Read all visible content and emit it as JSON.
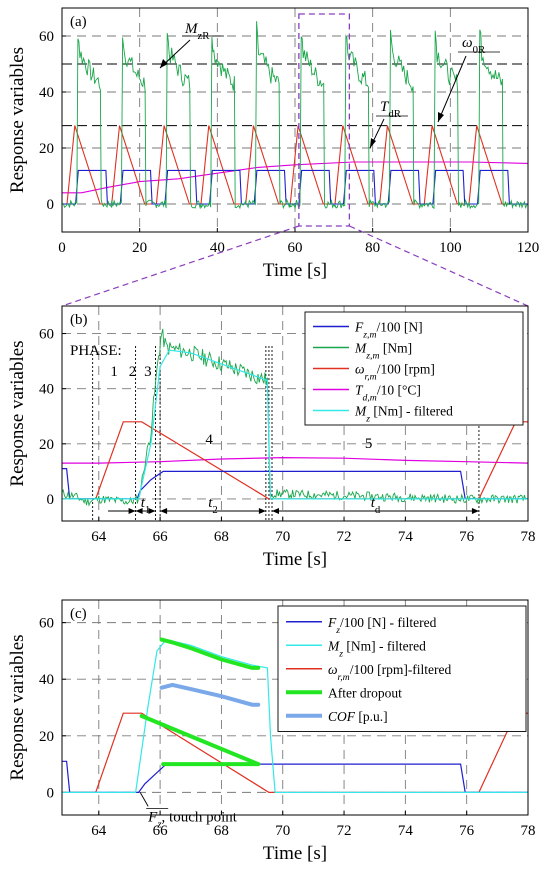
{
  "chart_data": [
    {
      "id": "a",
      "type": "line",
      "panel_label": "(a)",
      "xlabel": "Time [s]",
      "ylabel": "Response variables",
      "xlim": [
        0,
        120
      ],
      "ylim": [
        -10,
        70
      ],
      "xticks": [
        0,
        20,
        40,
        60,
        80,
        100,
        120
      ],
      "yticks": [
        0,
        20,
        40,
        60
      ],
      "grid": true,
      "hlines": [
        28,
        50
      ],
      "annotations": [
        {
          "text": "M",
          "sub": "zR"
        },
        {
          "text": "ω",
          "sub": "0R"
        },
        {
          "text": "T",
          "sub": "dR"
        }
      ],
      "zoom_window": [
        61,
        74
      ],
      "cycle": {
        "period": 11.5,
        "first_start": 1.3,
        "count": 10
      },
      "series": [
        {
          "key": "fz",
          "color": "#1f1fd0",
          "cycle_points": [
            [
              0,
              0
            ],
            [
              2.2,
              0
            ],
            [
              2.9,
              12
            ],
            [
              10.0,
              12
            ],
            [
              10.4,
              0
            ],
            [
              11.5,
              0
            ]
          ]
        },
        {
          "key": "mz",
          "color": "#1aa64a",
          "cycle_points": [
            [
              0,
              0
            ],
            [
              2.5,
              0
            ],
            [
              2.8,
              62
            ],
            [
              3.3,
              54
            ],
            [
              6.5,
              46
            ],
            [
              8.6,
              43
            ],
            [
              8.8,
              0
            ],
            [
              11.5,
              0
            ]
          ]
        },
        {
          "key": "w",
          "color": "#e03020",
          "cycle_points": [
            [
              0,
              0
            ],
            [
              2.0,
              28
            ],
            [
              8.5,
              0
            ],
            [
              11.5,
              0
            ]
          ]
        },
        {
          "key": "td",
          "color": "#e000e0",
          "points": [
            [
              0,
              4
            ],
            [
              5,
              4
            ],
            [
              12,
              6
            ],
            [
              20,
              8
            ],
            [
              30,
              9
            ],
            [
              40,
              11
            ],
            [
              50,
              13
            ],
            [
              60,
              14
            ],
            [
              75,
              15
            ],
            [
              90,
              15
            ],
            [
              105,
              15
            ],
            [
              120,
              14.5
            ]
          ]
        }
      ]
    },
    {
      "id": "b",
      "type": "line",
      "panel_label": "(b)",
      "xlabel": "Time [s]",
      "ylabel": "Response variables",
      "xlim": [
        62.8,
        78
      ],
      "ylim": [
        -8,
        70
      ],
      "xticks": [
        64,
        66,
        68,
        70,
        72,
        74,
        76,
        78
      ],
      "yticks": [
        0,
        20,
        40,
        60
      ],
      "grid": true,
      "phase_label": "PHASE:",
      "phases": [
        {
          "label": "1",
          "x": 64.5
        },
        {
          "label": "2",
          "x": 65.1
        },
        {
          "label": "3",
          "x": 65.6
        },
        {
          "label": "4",
          "x": 67.6
        },
        {
          "label": "5",
          "x": 72.8
        }
      ],
      "phase_lines": [
        63.8,
        65.2,
        65.85,
        66.0,
        69.45,
        69.55,
        69.65,
        76.4
      ],
      "intervals": [
        {
          "label": "t",
          "sub": "1",
          "from": 65.2,
          "to": 65.85
        },
        {
          "label": "t",
          "sub": "2",
          "from": 66.0,
          "to": 69.45
        },
        {
          "label": "t",
          "sub": "d",
          "from": 69.65,
          "to": 76.4
        }
      ],
      "legend_position": "top-right",
      "series": [
        {
          "name": "F",
          "name_sub": "z,m",
          "name_suffix": "/100 [N]",
          "color": "#1f1fd0",
          "points": [
            [
              62.8,
              11
            ],
            [
              62.95,
              11
            ],
            [
              63.05,
              0
            ],
            [
              65.25,
              0
            ],
            [
              65.35,
              3
            ],
            [
              65.7,
              7
            ],
            [
              66.1,
              10
            ],
            [
              75.8,
              10
            ],
            [
              75.95,
              0
            ],
            [
              78,
              0
            ]
          ]
        },
        {
          "name": "M",
          "name_sub": "z,m",
          "name_suffix": " [Nm]",
          "color": "#1aa64a",
          "points": [
            [
              62.8,
              2
            ],
            [
              63.2,
              1
            ],
            [
              63.6,
              -1
            ],
            [
              64.0,
              0
            ],
            [
              65.0,
              -1
            ],
            [
              65.3,
              0
            ],
            [
              65.7,
              25
            ],
            [
              65.95,
              52
            ],
            [
              66.05,
              60
            ],
            [
              66.2,
              55
            ],
            [
              67.0,
              53
            ],
            [
              68.0,
              49
            ],
            [
              69.0,
              45
            ],
            [
              69.5,
              43
            ],
            [
              69.58,
              2
            ],
            [
              75.8,
              0
            ],
            [
              76.3,
              0
            ],
            [
              78,
              0
            ]
          ]
        },
        {
          "name": "ω",
          "name_sub": "r,m",
          "name_suffix": "/100 [rpm]",
          "color": "#e03020",
          "points": [
            [
              62.8,
              0
            ],
            [
              63.9,
              0
            ],
            [
              64.8,
              28
            ],
            [
              65.4,
              28
            ],
            [
              69.55,
              0
            ],
            [
              76.4,
              0
            ],
            [
              77.6,
              28
            ],
            [
              78,
              28
            ]
          ]
        },
        {
          "name": "T",
          "name_sub": "d,m",
          "name_suffix": "/10 [°C]",
          "color": "#e000e0",
          "points": [
            [
              62.8,
              13
            ],
            [
              64,
              13
            ],
            [
              66,
              13.5
            ],
            [
              68,
              14.5
            ],
            [
              70,
              15
            ],
            [
              72,
              14.8
            ],
            [
              74,
              14
            ],
            [
              76,
              13.5
            ],
            [
              78,
              13
            ]
          ]
        },
        {
          "name": "M",
          "name_sub": "z",
          "name_suffix": " [Nm] - filtered",
          "color": "#33e8e8",
          "points": [
            [
              62.8,
              0
            ],
            [
              65.3,
              0
            ],
            [
              65.7,
              20
            ],
            [
              66.0,
              48
            ],
            [
              66.3,
              54
            ],
            [
              67.0,
              53
            ],
            [
              68.0,
              49
            ],
            [
              69.0,
              45
            ],
            [
              69.5,
              43
            ],
            [
              69.6,
              0
            ],
            [
              78,
              0
            ]
          ]
        }
      ]
    },
    {
      "id": "c",
      "type": "line",
      "panel_label": "(c)",
      "xlabel": "Time [s]",
      "ylabel": "Response variables",
      "xlim": [
        62.8,
        78
      ],
      "ylim": [
        -8,
        68
      ],
      "xticks": [
        64,
        66,
        68,
        70,
        72,
        74,
        76,
        78
      ],
      "yticks": [
        0,
        20,
        40,
        60
      ],
      "grid": true,
      "annotation": {
        "main": "F",
        "sub": "z",
        "rest": ", touch point",
        "x": 65.35,
        "y": 0
      },
      "legend_position": "top-right",
      "series": [
        {
          "name": "F",
          "name_sub": "z",
          "name_suffix": "/100 [N] - filtered",
          "color": "#1f1fd0",
          "points": [
            [
              62.8,
              11
            ],
            [
              62.95,
              11
            ],
            [
              63.05,
              0
            ],
            [
              65.3,
              0
            ],
            [
              65.5,
              3
            ],
            [
              65.9,
              7
            ],
            [
              66.2,
              10
            ],
            [
              75.8,
              10
            ],
            [
              75.95,
              0
            ],
            [
              78,
              0
            ]
          ]
        },
        {
          "name": "M",
          "name_sub": "z",
          "name_suffix": " [Nm] - filtered",
          "color": "#33e8e8",
          "points": [
            [
              62.8,
              0
            ],
            [
              65.2,
              0
            ],
            [
              65.6,
              30
            ],
            [
              65.9,
              50
            ],
            [
              66.2,
              54
            ],
            [
              67.0,
              52
            ],
            [
              68.0,
              48
            ],
            [
              69.0,
              45
            ],
            [
              69.5,
              44
            ],
            [
              69.6,
              20
            ],
            [
              69.75,
              0
            ],
            [
              78,
              0
            ]
          ]
        },
        {
          "name": "ω",
          "name_sub": "r,m",
          "name_suffix": "/100 [rpm]-filtered",
          "color": "#e03020",
          "points": [
            [
              62.8,
              0
            ],
            [
              63.9,
              0
            ],
            [
              64.8,
              28
            ],
            [
              65.4,
              28
            ],
            [
              69.55,
              0
            ],
            [
              76.4,
              0
            ],
            [
              77.6,
              28
            ],
            [
              78,
              28
            ]
          ]
        },
        {
          "name": "After dropout",
          "color": "#22e622",
          "thick": true,
          "points": [
            [
              66.05,
              54
            ],
            [
              66.4,
              53
            ],
            [
              67.0,
              51
            ],
            [
              68.0,
              47
            ],
            [
              69.0,
              44
            ],
            [
              69.2,
              44
            ]
          ]
        },
        {
          "name": "After dropout",
          "color": "#22e622",
          "thick": true,
          "nolegend": true,
          "points": [
            [
              65.4,
              27
            ],
            [
              69.2,
              10
            ]
          ]
        },
        {
          "name": "After dropout",
          "color": "#22e622",
          "thick": true,
          "nolegend": true,
          "points": [
            [
              66.1,
              10
            ],
            [
              69.2,
              10
            ]
          ]
        },
        {
          "name": "COF",
          "name_italic": true,
          "name_suffix": " [p.u.]",
          "color": "#7aa8e8",
          "thick": true,
          "points": [
            [
              66.05,
              37
            ],
            [
              66.4,
              38
            ],
            [
              67.0,
              36.5
            ],
            [
              68.0,
              34
            ],
            [
              69.0,
              31
            ],
            [
              69.2,
              31
            ]
          ]
        }
      ]
    }
  ]
}
